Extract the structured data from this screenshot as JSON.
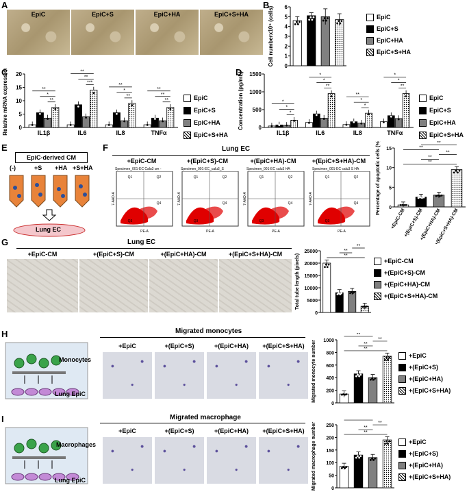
{
  "panels": {
    "A": {
      "letter": "A",
      "titles": [
        "EpiC",
        "EpiC+S",
        "EpiC+HA",
        "EpiC+S+HA"
      ]
    },
    "B": {
      "letter": "B"
    },
    "C": {
      "letter": "C"
    },
    "D": {
      "letter": "D"
    },
    "E": {
      "letter": "E",
      "title": "EpiC-derived CM",
      "tubes": [
        "(-)",
        "+S",
        "+HA",
        "+S+HA"
      ],
      "dish": "Lung EC"
    },
    "F": {
      "letter": "F",
      "header": "Lung EC",
      "titles": [
        "+EpiC-CM",
        "+(EpiC+S)-CM",
        "+(EpiC+HA)-CM",
        "+(EpiC+S+HA)-CM"
      ],
      "specimens": [
        "Specimen_001-EC Calu3 cm -",
        "Specimen_001-EC_calu3_S",
        "Specimen_001-EC calu3 HA",
        "Specimen_001-EC calu3 S HA"
      ],
      "quads": [
        "Q1",
        "Q2",
        "Q3",
        "Q4"
      ],
      "xaxis": "PE-A",
      "yaxis": "7-AAD-A"
    },
    "G": {
      "letter": "G",
      "header": "Lung EC",
      "titles": [
        "+EpiC-CM",
        "+(EpiC+S)-CM",
        "+(EpiC+HA)-CM",
        "+(EpiC+S+HA)-CM"
      ]
    },
    "H": {
      "letter": "H",
      "header": "Migrated monocytes",
      "titles": [
        "+EpiC",
        "+(EpiC+S)",
        "+(EpiC+HA)",
        "+(EpiC+S+HA)"
      ],
      "cells": "Monocytes",
      "base": "Lung EpiC"
    },
    "I": {
      "letter": "I",
      "header": "Migrated macrophage",
      "titles": [
        "+EpiC",
        "+(EpiC+S)",
        "+(EpiC+HA)",
        "+(EpiC+S+HA)"
      ],
      "cells": "Macrophages",
      "base": "Lung EpiC"
    }
  },
  "legend_AD": [
    "EpiC",
    "EpiC+S",
    "EpiC+HA",
    "EpiC+S+HA"
  ],
  "legend_FG": [
    "+EpiC-CM",
    "+(EpiC+S)-CM",
    "+(EpiC+HA)-CM",
    "+(EpiC+S+HA)-CM"
  ],
  "legend_HI": [
    "+EpiC",
    "+(EpiC+S)",
    "+(EpiC+HA)",
    "+(EpiC+S+HA)"
  ],
  "colors": {
    "s1": "#ffffff",
    "s2": "#000000",
    "s3": "#808080",
    "s4": "hatch"
  },
  "chart_data": [
    {
      "id": "B",
      "type": "bar",
      "ylabel": "Cell numberx10⁵ (cells)",
      "ylim": [
        0,
        6
      ],
      "yticks": [
        0,
        1,
        2,
        3,
        4,
        5,
        6
      ],
      "categories": [
        "EpiC",
        "EpiC+S",
        "EpiC+HA",
        "EpiC+S+HA"
      ],
      "values": [
        4.6,
        5.1,
        5.0,
        4.7
      ],
      "errors": [
        0.4,
        0.3,
        0.8,
        0.6
      ]
    },
    {
      "id": "C",
      "type": "bar",
      "ylabel": "Relative mRNA expression",
      "ylim": [
        0,
        20
      ],
      "yticks": [
        0,
        5,
        10,
        15,
        20
      ],
      "categories": [
        "IL1β",
        "IL6",
        "IL8",
        "TNFα"
      ],
      "series": [
        {
          "name": "EpiC",
          "values": [
            1,
            1,
            1,
            1
          ]
        },
        {
          "name": "EpiC+S",
          "values": [
            5.5,
            8.5,
            5.5,
            3.5
          ]
        },
        {
          "name": "EpiC+HA",
          "values": [
            3.5,
            4,
            2.5,
            2.5
          ]
        },
        {
          "name": "EpiC+S+HA",
          "values": [
            7.5,
            14,
            9,
            7.5
          ]
        }
      ],
      "sig": [
        "**",
        "*",
        "**",
        "***",
        "**",
        "**",
        "**",
        "*",
        "**",
        "**",
        "**",
        "**"
      ]
    },
    {
      "id": "D",
      "type": "bar",
      "ylabel": "Concentration (pg/mL)",
      "ylim": [
        0,
        1500
      ],
      "yticks": [
        0,
        500,
        1000,
        1500
      ],
      "categories": [
        "IL1β",
        "IL6",
        "IL8",
        "TNFα"
      ],
      "series": [
        {
          "name": "EpiC",
          "values": [
            40,
            140,
            80,
            160
          ]
        },
        {
          "name": "EpiC+S",
          "values": [
            70,
            380,
            160,
            330
          ]
        },
        {
          "name": "EpiC+HA",
          "values": [
            60,
            260,
            120,
            250
          ]
        },
        {
          "name": "EpiC+S+HA",
          "values": [
            200,
            950,
            400,
            950
          ]
        }
      ],
      "sig": [
        "*",
        "*",
        "*",
        "**",
        "*",
        "*",
        "*",
        "*",
        "**",
        "**",
        "*",
        "*"
      ]
    },
    {
      "id": "F",
      "type": "bar",
      "ylabel": "Percentage of apoptotic cells (%)",
      "ylim": [
        0,
        15
      ],
      "yticks": [
        0,
        5,
        10,
        15
      ],
      "categories": [
        "+EpiC-CM",
        "+(EpiC+S)-CM",
        "+(EpiC+HA)-CM",
        "+(EpiC+S+HA)-CM"
      ],
      "values": [
        0.5,
        2.5,
        3,
        9.5
      ],
      "sig": [
        "**",
        "**",
        "**",
        "**",
        "**"
      ]
    },
    {
      "id": "G",
      "type": "bar",
      "ylabel": "Total tube length (pixels)",
      "ylim": [
        0,
        25000
      ],
      "yticks": [
        0,
        5000,
        10000,
        15000,
        20000,
        25000
      ],
      "categories": [
        "+EpiC-CM",
        "+(EpiC+S)-CM",
        "+(EpiC+HA)-CM",
        "+(EpiC+S+HA)-CM"
      ],
      "values": [
        20000,
        8000,
        8500,
        2500
      ],
      "sig": [
        "**",
        "**",
        "**",
        "**",
        "**"
      ]
    },
    {
      "id": "H",
      "type": "bar",
      "ylabel": "Migrated monocyte number",
      "ylim": [
        0,
        1000
      ],
      "yticks": [
        0,
        200,
        400,
        600,
        800,
        1000
      ],
      "categories": [
        "+EpiC",
        "+(EpiC+S)",
        "+(EpiC+HA)",
        "+(EpiC+S+HA)"
      ],
      "values": [
        140,
        460,
        400,
        740
      ],
      "sig": [
        "**",
        "**",
        "**",
        "**",
        "**",
        "**"
      ]
    },
    {
      "id": "I",
      "type": "bar",
      "ylabel": "Migrated macrophage number",
      "ylim": [
        0,
        250
      ],
      "yticks": [
        0,
        50,
        100,
        150,
        200,
        250
      ],
      "categories": [
        "+EpiC",
        "+(EpiC+S)",
        "+(EpiC+HA)",
        "+(EpiC+S+HA)"
      ],
      "values": [
        85,
        130,
        120,
        190
      ],
      "sig": [
        "**",
        "**",
        "**",
        "*",
        "**",
        "**"
      ]
    }
  ]
}
